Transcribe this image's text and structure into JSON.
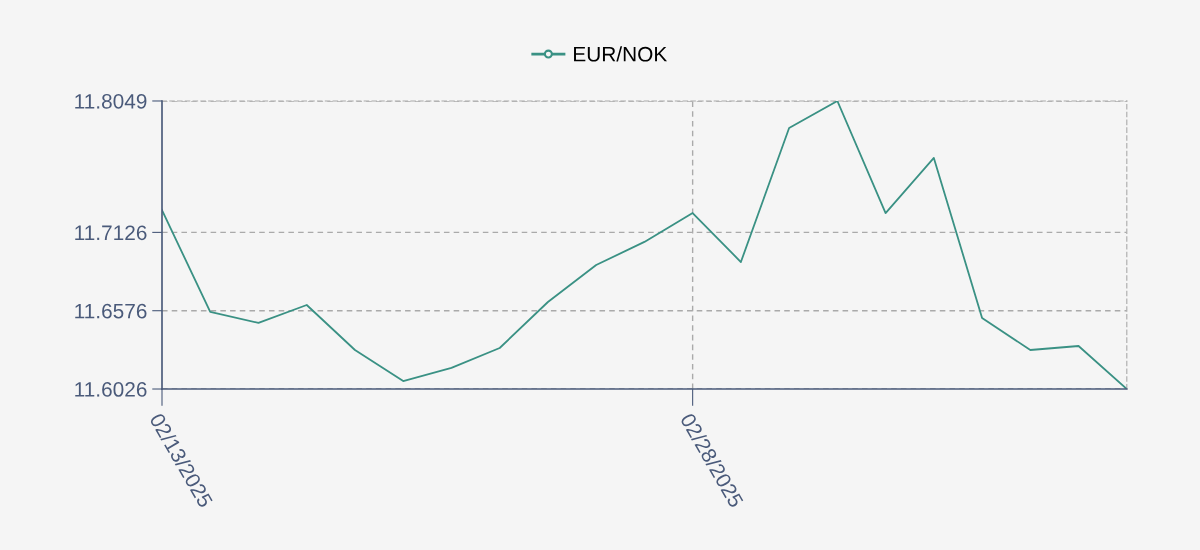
{
  "chart_data": {
    "type": "line",
    "categories": [
      "02/13/2025",
      null,
      null,
      null,
      null,
      null,
      null,
      null,
      null,
      null,
      null,
      "02/28/2025",
      null,
      null,
      null,
      null,
      null,
      null,
      null,
      null,
      null
    ],
    "series": [
      {
        "name": "EUR/NOK",
        "color": "#3a9184",
        "values": [
          11.7283,
          11.6567,
          11.649,
          11.6616,
          11.63,
          11.6082,
          11.6174,
          11.6314,
          11.6637,
          11.6897,
          11.7059,
          11.7262,
          11.6918,
          11.7859,
          11.8049,
          11.7262,
          11.7649,
          11.6525,
          11.63,
          11.6328,
          11.6026
        ]
      }
    ],
    "ylim": [
      11.6026,
      11.8049
    ],
    "yticks": [
      11.6026,
      11.6576,
      11.7126,
      11.8049
    ],
    "grid": true,
    "legend": "top",
    "marker": "none",
    "line_style": "solid"
  }
}
